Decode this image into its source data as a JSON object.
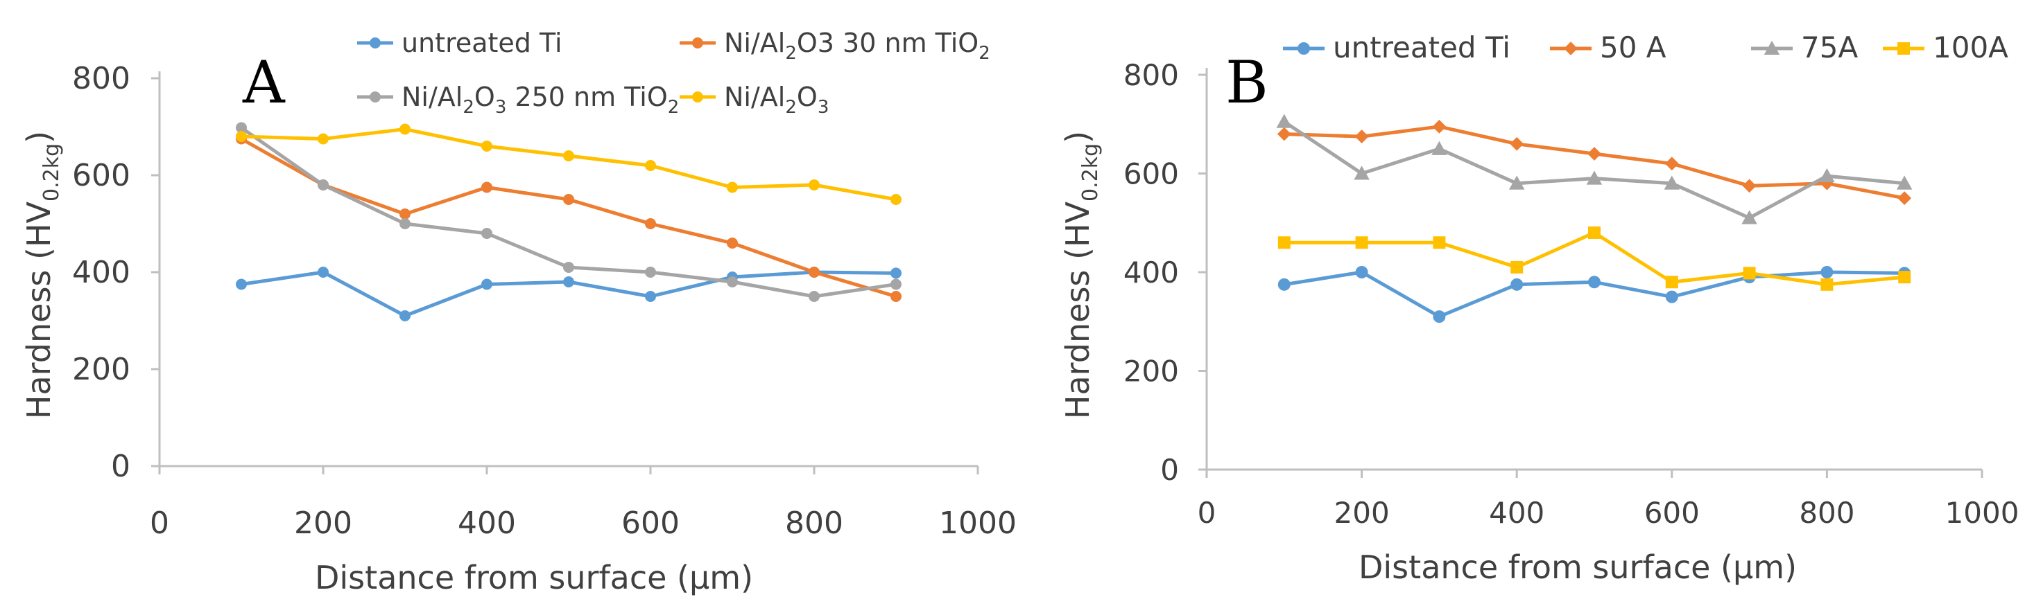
{
  "chart_data": [
    {
      "type": "line",
      "panel_label": "A",
      "xlabel": "Distance from surface (μm)",
      "ylabel_main": "Hardness (HV",
      "ylabel_sub": "0.2kg",
      "ylabel_close": ")",
      "xlim": [
        0,
        1000
      ],
      "ylim": [
        0,
        800
      ],
      "x_ticks": [
        "0",
        "200",
        "400",
        "600",
        "800",
        "1000"
      ],
      "y_ticks": [
        "0",
        "200",
        "400",
        "600",
        "800"
      ],
      "legend_position": "top",
      "series": [
        {
          "name": "untreated Ti",
          "legend_parts": [
            [
              "untreated Ti",
              false
            ]
          ],
          "color": "#5B9BD5",
          "marker": "circle",
          "x": [
            100,
            200,
            300,
            400,
            500,
            600,
            700,
            800,
            900
          ],
          "values": [
            375,
            400,
            310,
            375,
            380,
            350,
            390,
            400,
            398
          ]
        },
        {
          "name": "Ni/Al2O3 30 nm TiO2",
          "legend_parts": [
            [
              "Ni/Al",
              false
            ],
            [
              "2",
              true
            ],
            [
              "O3 30 nm TiO",
              false
            ],
            [
              "2",
              true
            ]
          ],
          "color": "#ED7D31",
          "marker": "circle",
          "x": [
            100,
            200,
            300,
            400,
            500,
            600,
            700,
            800,
            900
          ],
          "values": [
            675,
            580,
            520,
            575,
            550,
            500,
            460,
            400,
            350
          ]
        },
        {
          "name": "Ni/Al2O3 250 nm TiO2",
          "legend_parts": [
            [
              "Ni/Al",
              false
            ],
            [
              "2",
              true
            ],
            [
              "O",
              false
            ],
            [
              "3",
              true
            ],
            [
              " 250 nm TiO",
              false
            ],
            [
              "2",
              true
            ]
          ],
          "color": "#A5A5A5",
          "marker": "circle",
          "x": [
            100,
            200,
            300,
            400,
            500,
            600,
            700,
            800,
            900
          ],
          "values": [
            698,
            580,
            500,
            480,
            410,
            400,
            380,
            350,
            375
          ]
        },
        {
          "name": "Ni/Al2O3",
          "legend_parts": [
            [
              "Ni/Al",
              false
            ],
            [
              "2",
              true
            ],
            [
              "O",
              false
            ],
            [
              "3",
              true
            ]
          ],
          "color": "#FFC000",
          "marker": "circle",
          "x": [
            100,
            200,
            300,
            400,
            500,
            600,
            700,
            800,
            900
          ],
          "values": [
            680,
            675,
            695,
            660,
            640,
            620,
            575,
            580,
            550
          ]
        }
      ]
    },
    {
      "type": "line",
      "panel_label": "B",
      "xlabel": "Distance from surface (μm)",
      "ylabel_main": "Hardness (HV",
      "ylabel_sub": "0.2kg",
      "ylabel_close": ")",
      "xlim": [
        0,
        1000
      ],
      "ylim": [
        0,
        800
      ],
      "x_ticks": [
        "0",
        "200",
        "400",
        "600",
        "800",
        "1000"
      ],
      "y_ticks": [
        "0",
        "200",
        "400",
        "600",
        "800"
      ],
      "legend_position": "top",
      "series": [
        {
          "name": "untreated Ti",
          "legend_parts": [
            [
              "untreated Ti",
              false
            ]
          ],
          "color": "#5B9BD5",
          "marker": "circle",
          "x": [
            100,
            200,
            300,
            400,
            500,
            600,
            700,
            800,
            900
          ],
          "values": [
            375,
            400,
            310,
            375,
            380,
            350,
            390,
            400,
            398
          ]
        },
        {
          "name": "50 A",
          "legend_parts": [
            [
              "50 A",
              false
            ]
          ],
          "color": "#ED7D31",
          "marker": "diamond",
          "x": [
            100,
            200,
            300,
            400,
            500,
            600,
            700,
            800,
            900
          ],
          "values": [
            680,
            675,
            695,
            660,
            640,
            620,
            575,
            580,
            550
          ]
        },
        {
          "name": "75A",
          "legend_parts": [
            [
              "75A",
              false
            ]
          ],
          "color": "#A5A5A5",
          "marker": "triangle",
          "x": [
            100,
            200,
            300,
            400,
            500,
            600,
            700,
            800,
            900
          ],
          "values": [
            705,
            600,
            650,
            580,
            590,
            580,
            510,
            595,
            580
          ]
        },
        {
          "name": "100A",
          "legend_parts": [
            [
              "100A",
              false
            ]
          ],
          "color": "#FFC000",
          "marker": "square",
          "x": [
            100,
            200,
            300,
            400,
            500,
            600,
            700,
            800,
            900
          ],
          "values": [
            460,
            460,
            460,
            410,
            480,
            380,
            398,
            375,
            390
          ]
        }
      ]
    }
  ]
}
